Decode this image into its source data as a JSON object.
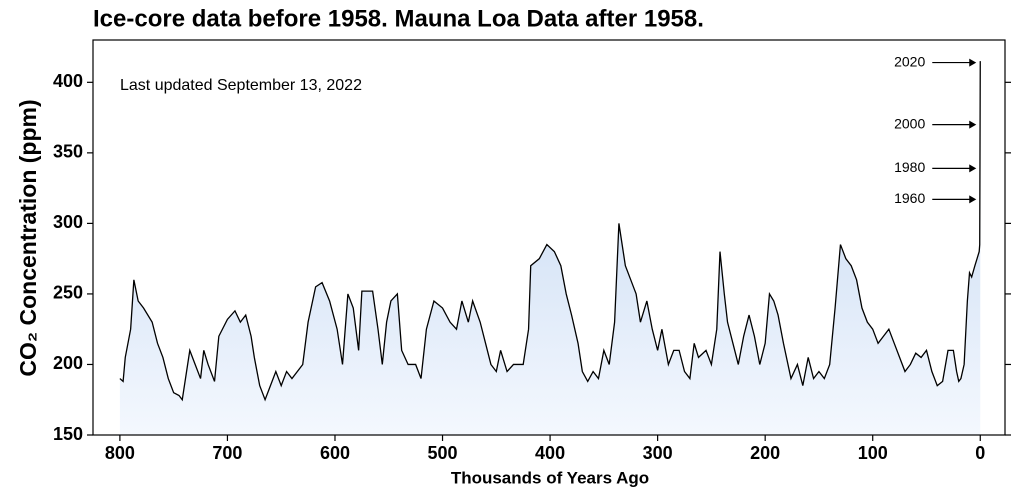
{
  "chart_data": {
    "type": "area",
    "title": "Ice-core data before 1958. Mauna Loa Data after 1958.",
    "subtitle": "Last updated September 13, 2022",
    "xlabel": "Thousands of Years Ago",
    "ylabel": "CO₂ Concentration (ppm)",
    "x": [
      800,
      797,
      795,
      790,
      787,
      783,
      778,
      770,
      765,
      760,
      755,
      750,
      745,
      742,
      738,
      735,
      730,
      725,
      722,
      718,
      712,
      708,
      700,
      693,
      688,
      683,
      678,
      675,
      670,
      665,
      660,
      655,
      650,
      645,
      640,
      630,
      625,
      618,
      612,
      605,
      598,
      593,
      588,
      583,
      578,
      575,
      565,
      560,
      556,
      552,
      548,
      542,
      538,
      532,
      525,
      520,
      515,
      508,
      500,
      493,
      487,
      482,
      476,
      472,
      465,
      460,
      455,
      450,
      446,
      440,
      434,
      425,
      420,
      418,
      410,
      403,
      396,
      390,
      385,
      380,
      374,
      370,
      365,
      360,
      355,
      350,
      345,
      340,
      336,
      330,
      325,
      320,
      316,
      310,
      305,
      300,
      296,
      290,
      285,
      280,
      275,
      270,
      266,
      262,
      255,
      250,
      245,
      242,
      238,
      235,
      230,
      225,
      220,
      215,
      210,
      205,
      200,
      196,
      192,
      188,
      183,
      176,
      170,
      165,
      160,
      155,
      150,
      145,
      140,
      135,
      130,
      125,
      120,
      115,
      110,
      105,
      100,
      95,
      90,
      85,
      80,
      75,
      70,
      65,
      60,
      55,
      50,
      45,
      40,
      35,
      30,
      25,
      22,
      20,
      18,
      15,
      12,
      10,
      8,
      5,
      3,
      1,
      0.5,
      0
    ],
    "values": [
      190,
      188,
      205,
      225,
      260,
      245,
      240,
      230,
      215,
      205,
      190,
      180,
      178,
      175,
      195,
      210,
      200,
      190,
      210,
      200,
      188,
      220,
      232,
      238,
      230,
      235,
      220,
      205,
      185,
      175,
      185,
      195,
      185,
      195,
      190,
      200,
      230,
      255,
      258,
      245,
      225,
      200,
      250,
      240,
      210,
      252,
      252,
      225,
      200,
      230,
      245,
      250,
      210,
      200,
      200,
      190,
      225,
      245,
      240,
      230,
      225,
      245,
      230,
      245,
      230,
      215,
      200,
      195,
      210,
      195,
      200,
      200,
      225,
      270,
      275,
      285,
      280,
      270,
      250,
      235,
      215,
      195,
      188,
      195,
      190,
      210,
      200,
      230,
      300,
      270,
      260,
      250,
      230,
      245,
      225,
      210,
      225,
      200,
      210,
      210,
      195,
      190,
      215,
      205,
      210,
      200,
      225,
      280,
      250,
      230,
      215,
      200,
      220,
      235,
      220,
      200,
      215,
      250,
      245,
      235,
      215,
      190,
      200,
      185,
      205,
      190,
      195,
      190,
      200,
      240,
      285,
      275,
      270,
      260,
      240,
      230,
      225,
      215,
      220,
      225,
      215,
      205,
      195,
      200,
      208,
      205,
      210,
      195,
      185,
      188,
      210,
      210,
      195,
      188,
      190,
      200,
      245,
      265,
      262,
      270,
      275,
      280,
      285,
      415
    ],
    "color": "#000000",
    "fill_top": "#bdd3f0",
    "fill_bottom": "#f4f8fe",
    "xlim": [
      825,
      -23
    ],
    "xticks": [
      800,
      700,
      600,
      500,
      400,
      300,
      200,
      100,
      0
    ],
    "ylim": [
      150,
      430
    ],
    "yticks": [
      150,
      200,
      250,
      300,
      350,
      400
    ],
    "annotations": [
      {
        "label": "2020",
        "value": 414
      },
      {
        "label": "2000",
        "value": 370
      },
      {
        "label": "1980",
        "value": 339
      },
      {
        "label": "1960",
        "value": 317
      }
    ]
  }
}
